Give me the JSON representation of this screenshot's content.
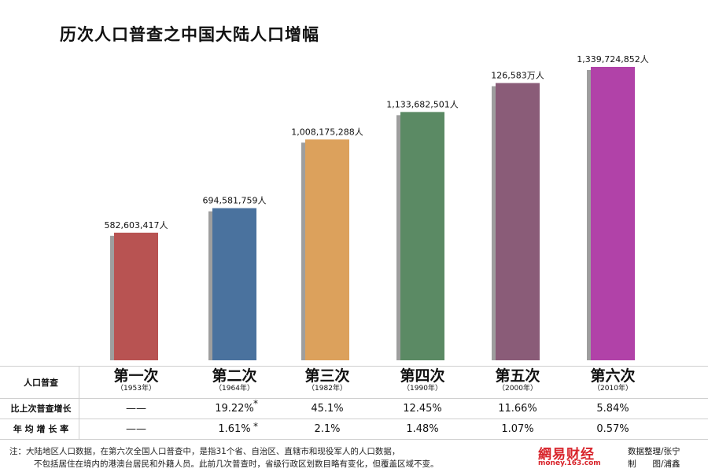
{
  "title": "历次人口普查之中国大陆人口增幅",
  "chart_data": {
    "type": "bar",
    "categories": [
      "第一次",
      "第二次",
      "第三次",
      "第四次",
      "第五次",
      "第六次"
    ],
    "values": [
      582603417,
      694581759,
      1008175288,
      1133682501,
      1265830000,
      1339724852
    ],
    "value_labels": [
      "582,603,417人",
      "694,581,759人",
      "1,008,175,288人",
      "1,133,682,501人",
      "126,583万人",
      "1,339,724,852人"
    ],
    "colors": [
      "#b85352",
      "#4a729e",
      "#dca15c",
      "#5b8a64",
      "#8a5c78",
      "#b142a8"
    ],
    "ylim": [
      0,
      1400000000
    ],
    "xlabel": "",
    "ylabel": ""
  },
  "table": {
    "header_label": "人口普查",
    "columns": [
      {
        "name": "第一次",
        "year": "（1953年）"
      },
      {
        "name": "第二次",
        "year": "（1964年）"
      },
      {
        "name": "第三次",
        "year": "（1982年）"
      },
      {
        "name": "第四次",
        "year": "（1990年）"
      },
      {
        "name": "第五次",
        "year": "（2000年）"
      },
      {
        "name": "第六次",
        "year": "（2010年）"
      }
    ],
    "growth_label": "比上次普查增长",
    "growth": [
      "——",
      "19.22%",
      "45.1%",
      "12.45%",
      "11.66%",
      "5.84%"
    ],
    "annual_label": "年 均 增 长 率",
    "annual": [
      "——",
      "1.61%",
      "2.1%",
      "1.48%",
      "1.07%",
      "0.57%"
    ],
    "star": "*"
  },
  "footer": {
    "note_line1": "注：大陆地区人口数据，在第六次全国人口普查中，是指31个省、自治区、直辖市和现役军人的人口数据，",
    "note_line2": "不包括居住在境内的港澳台居民和外籍人员。此前几次普查时，省级行政区划数目略有变化，但覆盖区域不变。",
    "logo": "網易财经",
    "logo_sub": "money.163.com",
    "credit_line1": "数据整理/张宁",
    "credit_line2": "制　　图/浦鑫"
  }
}
